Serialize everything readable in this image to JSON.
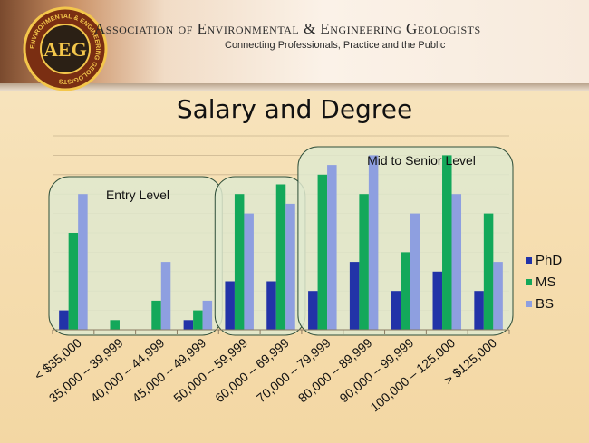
{
  "header": {
    "org_name": "Association of Environmental & Engineering Geologists",
    "tagline": "Connecting Professionals, Practice and the Public",
    "logo_text": "AEG",
    "logo_ring_text": "ENVIRONMENTAL & ENGINEERING GEOLOGISTS"
  },
  "colors": {
    "phd": "#2233a8",
    "ms": "#13a85a",
    "bs": "#8e9fe0",
    "group_fill": "#dfe9cf",
    "group_stroke": "#2f4f3a"
  },
  "chart_data": {
    "type": "bar",
    "title": "Salary and Degree",
    "categories": [
      "< $35,000",
      "35,000 – 39,999",
      "40,000 – 44,999",
      "45,000 – 49,999",
      "50,000 – 59,999",
      "60,000 – 69,999",
      "70,000 – 79,999",
      "80,000 – 89,999",
      "90,000 – 99,999",
      "100,000 – 125,000",
      "> $125,000"
    ],
    "series": [
      {
        "name": "PhD",
        "values": [
          2,
          0,
          0,
          1,
          5,
          5,
          4,
          7,
          4,
          6,
          4
        ]
      },
      {
        "name": "MS",
        "values": [
          10,
          1,
          3,
          2,
          14,
          15,
          16,
          14,
          8,
          18,
          12
        ]
      },
      {
        "name": "BS",
        "values": [
          14,
          0,
          7,
          3,
          12,
          13,
          17,
          18,
          12,
          14,
          7
        ]
      }
    ],
    "ylim": [
      0,
      20
    ],
    "grid": true,
    "legend": "right",
    "annotations": [
      {
        "label": "Entry Level",
        "categories": [
          0,
          3
        ]
      },
      {
        "label": "",
        "categories": [
          4,
          5
        ]
      },
      {
        "label": "Mid to Senior Level",
        "categories": [
          6,
          10
        ]
      }
    ]
  }
}
